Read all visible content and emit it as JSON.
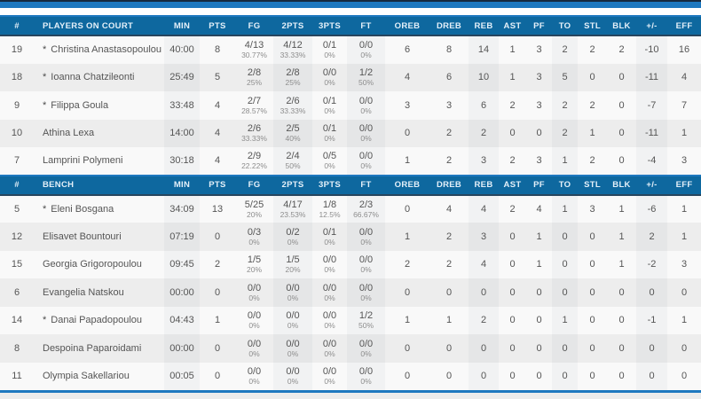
{
  "theme": {
    "accent_blue": "#1e78bf",
    "header_bg": "#0e689f",
    "header_text": "#e4f0f9",
    "row_odd": "#f9f9f9",
    "row_even": "#ededed"
  },
  "columns": [
    {
      "key": "number",
      "label": "#"
    },
    {
      "key": "name",
      "label": ""
    },
    {
      "key": "min",
      "label": "MIN"
    },
    {
      "key": "pts",
      "label": "PTS"
    },
    {
      "key": "fg",
      "label": "FG"
    },
    {
      "key": "p2",
      "label": "2PTS"
    },
    {
      "key": "p3",
      "label": "3PTS"
    },
    {
      "key": "ft",
      "label": "FT"
    },
    {
      "key": "oreb",
      "label": "OREB"
    },
    {
      "key": "dreb",
      "label": "DREB"
    },
    {
      "key": "reb",
      "label": "REB"
    },
    {
      "key": "ast",
      "label": "AST"
    },
    {
      "key": "pf",
      "label": "PF"
    },
    {
      "key": "to",
      "label": "TO"
    },
    {
      "key": "stl",
      "label": "STL"
    },
    {
      "key": "blk",
      "label": "BLK"
    },
    {
      "key": "pm",
      "label": "+/-"
    },
    {
      "key": "eff",
      "label": "EFF"
    }
  ],
  "sections": [
    {
      "id": "on-court",
      "name_header": "PLAYERS ON COURT",
      "players": [
        {
          "number": "19",
          "starter": true,
          "name": "Christina Anastasopoulou",
          "min": "40:00",
          "pts": "8",
          "fg": "4/13",
          "fg_pct": "30.77%",
          "p2": "4/12",
          "p2_pct": "33.33%",
          "p3": "0/1",
          "p3_pct": "0%",
          "ft": "0/0",
          "ft_pct": "0%",
          "oreb": "6",
          "dreb": "8",
          "reb": "14",
          "ast": "1",
          "pf": "3",
          "to": "2",
          "stl": "2",
          "blk": "2",
          "pm": "-10",
          "eff": "16"
        },
        {
          "number": "18",
          "starter": true,
          "name": "Ioanna Chatzileonti",
          "min": "25:49",
          "pts": "5",
          "fg": "2/8",
          "fg_pct": "25%",
          "p2": "2/8",
          "p2_pct": "25%",
          "p3": "0/0",
          "p3_pct": "0%",
          "ft": "1/2",
          "ft_pct": "50%",
          "oreb": "4",
          "dreb": "6",
          "reb": "10",
          "ast": "1",
          "pf": "3",
          "to": "5",
          "stl": "0",
          "blk": "0",
          "pm": "-11",
          "eff": "4"
        },
        {
          "number": "9",
          "starter": true,
          "name": "Filippa Goula",
          "min": "33:48",
          "pts": "4",
          "fg": "2/7",
          "fg_pct": "28.57%",
          "p2": "2/6",
          "p2_pct": "33.33%",
          "p3": "0/1",
          "p3_pct": "0%",
          "ft": "0/0",
          "ft_pct": "0%",
          "oreb": "3",
          "dreb": "3",
          "reb": "6",
          "ast": "2",
          "pf": "3",
          "to": "2",
          "stl": "2",
          "blk": "0",
          "pm": "-7",
          "eff": "7"
        },
        {
          "number": "10",
          "starter": false,
          "name": "Athina Lexa",
          "min": "14:00",
          "pts": "4",
          "fg": "2/6",
          "fg_pct": "33.33%",
          "p2": "2/5",
          "p2_pct": "40%",
          "p3": "0/1",
          "p3_pct": "0%",
          "ft": "0/0",
          "ft_pct": "0%",
          "oreb": "0",
          "dreb": "2",
          "reb": "2",
          "ast": "0",
          "pf": "0",
          "to": "2",
          "stl": "1",
          "blk": "0",
          "pm": "-11",
          "eff": "1"
        },
        {
          "number": "7",
          "starter": false,
          "name": "Lamprini Polymeni",
          "min": "30:18",
          "pts": "4",
          "fg": "2/9",
          "fg_pct": "22.22%",
          "p2": "2/4",
          "p2_pct": "50%",
          "p3": "0/5",
          "p3_pct": "0%",
          "ft": "0/0",
          "ft_pct": "0%",
          "oreb": "1",
          "dreb": "2",
          "reb": "3",
          "ast": "2",
          "pf": "3",
          "to": "1",
          "stl": "2",
          "blk": "0",
          "pm": "-4",
          "eff": "3"
        }
      ]
    },
    {
      "id": "bench",
      "name_header": "BENCH",
      "players": [
        {
          "number": "5",
          "starter": true,
          "name": "Eleni Bosgana",
          "min": "34:09",
          "pts": "13",
          "fg": "5/25",
          "fg_pct": "20%",
          "p2": "4/17",
          "p2_pct": "23.53%",
          "p3": "1/8",
          "p3_pct": "12.5%",
          "ft": "2/3",
          "ft_pct": "66.67%",
          "oreb": "0",
          "dreb": "4",
          "reb": "4",
          "ast": "2",
          "pf": "4",
          "to": "1",
          "stl": "3",
          "blk": "1",
          "pm": "-6",
          "eff": "1"
        },
        {
          "number": "12",
          "starter": false,
          "name": "Elisavet Bountouri",
          "min": "07:19",
          "pts": "0",
          "fg": "0/3",
          "fg_pct": "0%",
          "p2": "0/2",
          "p2_pct": "0%",
          "p3": "0/1",
          "p3_pct": "0%",
          "ft": "0/0",
          "ft_pct": "0%",
          "oreb": "1",
          "dreb": "2",
          "reb": "3",
          "ast": "0",
          "pf": "1",
          "to": "0",
          "stl": "0",
          "blk": "1",
          "pm": "2",
          "eff": "1"
        },
        {
          "number": "15",
          "starter": false,
          "name": "Georgia Grigoropoulou",
          "min": "09:45",
          "pts": "2",
          "fg": "1/5",
          "fg_pct": "20%",
          "p2": "1/5",
          "p2_pct": "20%",
          "p3": "0/0",
          "p3_pct": "0%",
          "ft": "0/0",
          "ft_pct": "0%",
          "oreb": "2",
          "dreb": "2",
          "reb": "4",
          "ast": "0",
          "pf": "1",
          "to": "0",
          "stl": "0",
          "blk": "1",
          "pm": "-2",
          "eff": "3"
        },
        {
          "number": "6",
          "starter": false,
          "name": "Evangelia Natskou",
          "min": "00:00",
          "pts": "0",
          "fg": "0/0",
          "fg_pct": "0%",
          "p2": "0/0",
          "p2_pct": "0%",
          "p3": "0/0",
          "p3_pct": "0%",
          "ft": "0/0",
          "ft_pct": "0%",
          "oreb": "0",
          "dreb": "0",
          "reb": "0",
          "ast": "0",
          "pf": "0",
          "to": "0",
          "stl": "0",
          "blk": "0",
          "pm": "0",
          "eff": "0"
        },
        {
          "number": "14",
          "starter": true,
          "name": "Danai Papadopoulou",
          "min": "04:43",
          "pts": "1",
          "fg": "0/0",
          "fg_pct": "0%",
          "p2": "0/0",
          "p2_pct": "0%",
          "p3": "0/0",
          "p3_pct": "0%",
          "ft": "1/2",
          "ft_pct": "50%",
          "oreb": "1",
          "dreb": "1",
          "reb": "2",
          "ast": "0",
          "pf": "0",
          "to": "1",
          "stl": "0",
          "blk": "0",
          "pm": "-1",
          "eff": "1"
        },
        {
          "number": "8",
          "starter": false,
          "name": "Despoina Paparoidami",
          "min": "00:00",
          "pts": "0",
          "fg": "0/0",
          "fg_pct": "0%",
          "p2": "0/0",
          "p2_pct": "0%",
          "p3": "0/0",
          "p3_pct": "0%",
          "ft": "0/0",
          "ft_pct": "0%",
          "oreb": "0",
          "dreb": "0",
          "reb": "0",
          "ast": "0",
          "pf": "0",
          "to": "0",
          "stl": "0",
          "blk": "0",
          "pm": "0",
          "eff": "0"
        },
        {
          "number": "11",
          "starter": false,
          "name": "Olympia Sakellariou",
          "min": "00:05",
          "pts": "0",
          "fg": "0/0",
          "fg_pct": "0%",
          "p2": "0/0",
          "p2_pct": "0%",
          "p3": "0/0",
          "p3_pct": "0%",
          "ft": "0/0",
          "ft_pct": "0%",
          "oreb": "0",
          "dreb": "0",
          "reb": "0",
          "ast": "0",
          "pf": "0",
          "to": "0",
          "stl": "0",
          "blk": "0",
          "pm": "0",
          "eff": "0"
        }
      ]
    }
  ],
  "starter_marker": "*"
}
